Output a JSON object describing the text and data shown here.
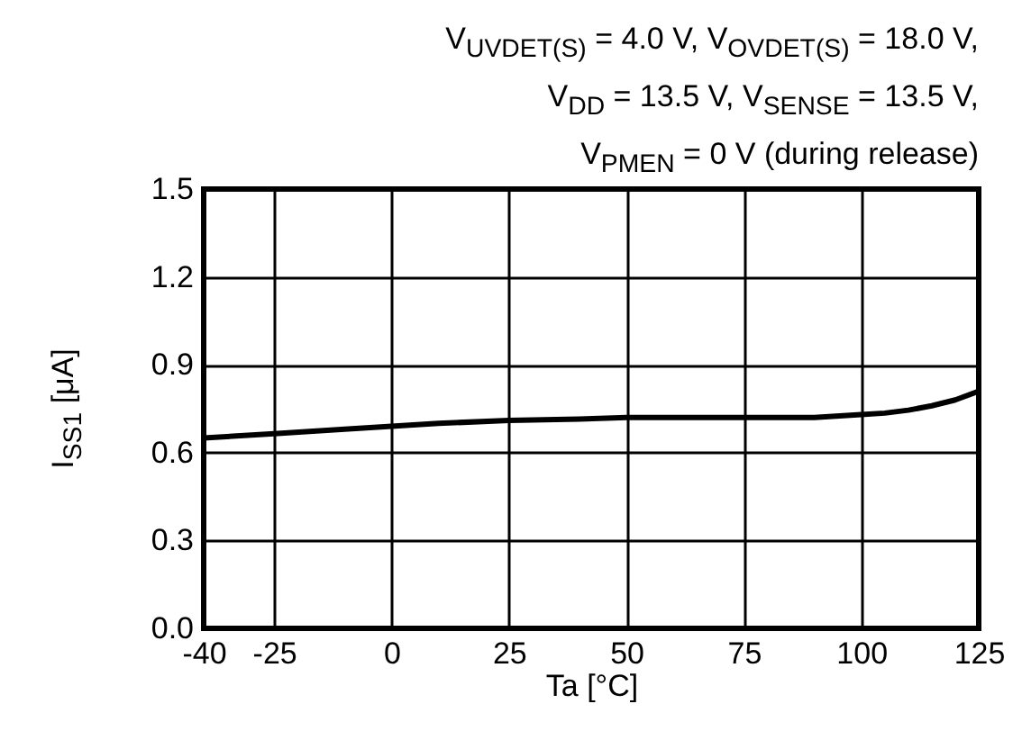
{
  "chart_data": {
    "type": "line",
    "annotations": [
      "V$_{UVDET(S)}$ = 4.0 V, V$_{OVDET(S)}$ = 18.0 V,",
      "V$_{DD}$ = 13.5 V, V$_{SENSE}$ = 13.5 V,",
      "V$_{PMEN}$ = 0 V (during release)"
    ],
    "xlabel": "Ta [°C]",
    "ylabel": "I$_{SS1}$ [μA]",
    "x": [
      -40,
      -25,
      -10,
      0,
      10,
      25,
      40,
      50,
      60,
      75,
      90,
      100,
      105,
      110,
      115,
      120,
      125
    ],
    "series": [
      {
        "color": "#000000",
        "values": [
          0.65,
          0.665,
          0.68,
          0.69,
          0.7,
          0.71,
          0.715,
          0.72,
          0.72,
          0.72,
          0.72,
          0.73,
          0.735,
          0.745,
          0.76,
          0.78,
          0.81
        ]
      }
    ],
    "xlim": [
      -40,
      125
    ],
    "xticks": [
      -40,
      -25,
      0,
      25,
      50,
      75,
      100,
      125
    ],
    "ylim": [
      0,
      1.5
    ],
    "yticks": [
      {
        "value": 0,
        "label": "0.0"
      },
      0.3,
      0.6,
      0.9,
      1.2,
      1.5
    ],
    "grid": true
  }
}
